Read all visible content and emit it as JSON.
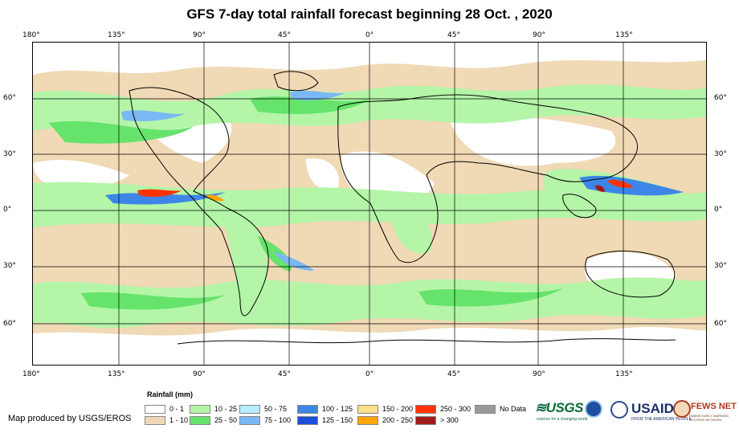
{
  "title": "GFS 7-day total rainfall forecast beginning 28 Oct. , 2020",
  "longitude_ticks": [
    "180°",
    "135°",
    "90°",
    "45°",
    "0°",
    "45°",
    "90°",
    "135°"
  ],
  "latitude_ticks": [
    "60°",
    "30°",
    "0°",
    "30°",
    "60°"
  ],
  "legend": {
    "title": "Rainfall (mm)",
    "items": [
      {
        "label": "0 - 1",
        "color": "#ffffff"
      },
      {
        "label": "1 - 10",
        "color": "#f0d9b5"
      },
      {
        "label": "10 - 25",
        "color": "#b4f5a8"
      },
      {
        "label": "25 - 50",
        "color": "#66e36b"
      },
      {
        "label": "50 - 75",
        "color": "#b8ecff"
      },
      {
        "label": "75 - 100",
        "color": "#7ab8f5"
      },
      {
        "label": "100 - 125",
        "color": "#3d86e8"
      },
      {
        "label": "125 - 150",
        "color": "#1a4fd6"
      },
      {
        "label": "150 - 200",
        "color": "#ffe08a"
      },
      {
        "label": "200 - 250",
        "color": "#ffa500"
      },
      {
        "label": "250 - 300",
        "color": "#ff3300"
      },
      {
        "label": "> 300",
        "color": "#a01c1c"
      },
      {
        "label": "No Data",
        "color": "#9a9a9a"
      }
    ]
  },
  "credit": "Map produced by USGS/EROS",
  "logos": {
    "usgs": "≋USGS",
    "usgs_tagline": "science for a changing world",
    "usaid": "USAID",
    "usaid_tagline": "FROM THE AMERICAN PEOPLE",
    "fews": "FEWS NET",
    "fews_tagline": "FAMINE EARLY WARNING SYSTEMS NETWORK"
  }
}
